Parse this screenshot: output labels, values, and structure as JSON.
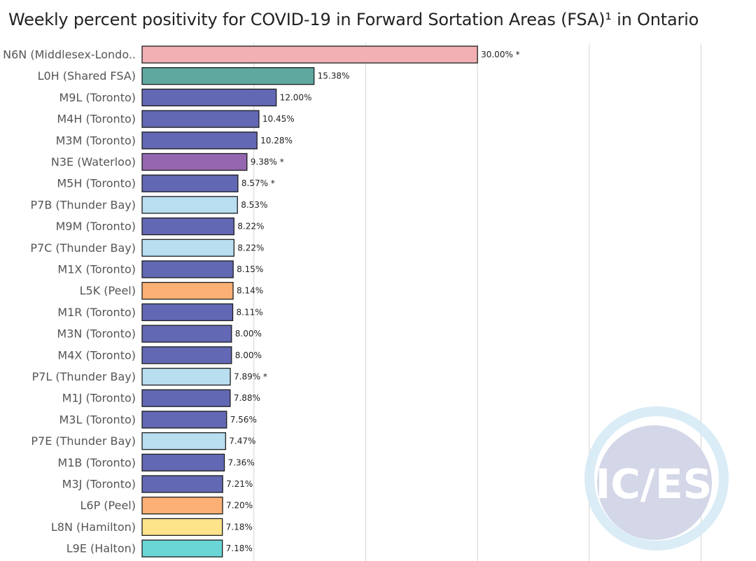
{
  "chart_data": {
    "type": "bar",
    "orientation": "horizontal",
    "title": "Weekly percent positivity for COVID-19 in Forward Sortation Areas (FSA)¹ in Ontario",
    "xlabel": "",
    "ylabel": "",
    "xlim": [
      0,
      50
    ],
    "grid": true,
    "categories": [
      "N6N (Middlesex-Londo..",
      "L0H (Shared FSA)",
      "M9L (Toronto)",
      "M4H (Toronto)",
      "M3M (Toronto)",
      "N3E (Waterloo)",
      "M5H (Toronto)",
      "P7B (Thunder Bay)",
      "M9M (Toronto)",
      "P7C (Thunder Bay)",
      "M1X (Toronto)",
      "L5K (Peel)",
      "M1R (Toronto)",
      "M3N (Toronto)",
      "M4X (Toronto)",
      "P7L (Thunder Bay)",
      "M1J (Toronto)",
      "M3L (Toronto)",
      "P7E (Thunder Bay)",
      "M1B (Toronto)",
      "M3J (Toronto)",
      "L6P (Peel)",
      "L8N (Hamilton)",
      "L9E (Halton)"
    ],
    "values": [
      30.0,
      15.38,
      12.0,
      10.45,
      10.28,
      9.38,
      8.57,
      8.53,
      8.22,
      8.22,
      8.15,
      8.14,
      8.11,
      8.0,
      8.0,
      7.89,
      7.88,
      7.56,
      7.47,
      7.36,
      7.21,
      7.2,
      7.18,
      7.18
    ],
    "labels": [
      "30.00% *",
      "15.38%",
      "12.00%",
      "10.45%",
      "10.28%",
      "9.38% *",
      "8.57% *",
      "8.53%",
      "8.22%",
      "8.22%",
      "8.15%",
      "8.14%",
      "8.11%",
      "8.00%",
      "8.00%",
      "7.89% *",
      "7.88%",
      "7.56%",
      "7.47%",
      "7.36%",
      "7.21%",
      "7.20%",
      "7.18%",
      "7.18%"
    ],
    "colors": [
      "#f2b0b4",
      "#5fa8a0",
      "#6268b3",
      "#6268b3",
      "#6268b3",
      "#9467b0",
      "#6268b3",
      "#b8def0",
      "#6268b3",
      "#b8def0",
      "#6268b3",
      "#fcb075",
      "#6268b3",
      "#6268b3",
      "#6268b3",
      "#b8def0",
      "#6268b3",
      "#6268b3",
      "#b8def0",
      "#6268b3",
      "#6268b3",
      "#fcb075",
      "#fde48a",
      "#6ad6d6"
    ],
    "gridlines": [
      0,
      10,
      20,
      30,
      40,
      50
    ]
  },
  "watermark": {
    "text": "IC/ES",
    "circle_color": "#cfd3e6",
    "ring_color": "#d2e8f5"
  }
}
